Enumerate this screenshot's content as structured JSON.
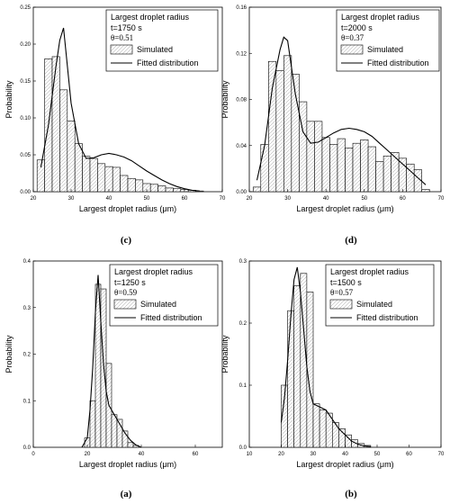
{
  "chart_data": [
    {
      "id": "c",
      "type": "bar",
      "caption": "(c)",
      "legend_title": "Largest droplet radius",
      "time_label": "t=1750 s",
      "theta_label": "θ=0.51",
      "legend_sim": "Simulated",
      "legend_fit": "Fitted distribution",
      "xlabel": "Largest droplet radius (μm)",
      "ylabel": "Probability",
      "xlim": [
        20,
        70
      ],
      "ylim": [
        0,
        0.25
      ],
      "xticks": [
        "20",
        "30",
        "40",
        "50",
        "60",
        "70"
      ],
      "yticks": [
        "0.00",
        "0.05",
        "0.10",
        "0.15",
        "0.20",
        "0.25"
      ],
      "bin_width": 2,
      "bin_starts": [
        21,
        23,
        25,
        27,
        29,
        31,
        33,
        35,
        37,
        39,
        41,
        43,
        45,
        47,
        49,
        51,
        53,
        55,
        57,
        59,
        61,
        63
      ],
      "values": [
        0.043,
        0.18,
        0.183,
        0.138,
        0.096,
        0.065,
        0.048,
        0.045,
        0.038,
        0.034,
        0.033,
        0.022,
        0.018,
        0.016,
        0.011,
        0.01,
        0.008,
        0.005,
        0.004,
        0.003,
        0.002,
        0.001
      ],
      "fit_x": [
        22,
        24,
        26,
        27,
        28,
        30,
        32,
        34,
        36,
        38,
        40,
        42,
        44,
        46,
        48,
        50,
        52,
        54,
        56,
        58,
        60,
        62,
        64
      ],
      "fit_y": [
        0.033,
        0.09,
        0.17,
        0.205,
        0.222,
        0.12,
        0.065,
        0.045,
        0.046,
        0.05,
        0.052,
        0.05,
        0.047,
        0.042,
        0.035,
        0.028,
        0.022,
        0.016,
        0.011,
        0.007,
        0.004,
        0.002,
        0.001
      ]
    },
    {
      "id": "d",
      "type": "bar",
      "caption": "(d)",
      "legend_title": "Largest droplet radius",
      "time_label": "t=2000 s",
      "theta_label": "θ=0.37",
      "legend_sim": "Simulated",
      "legend_fit": "Fitted distribution",
      "xlabel": "Largest droplet radius (μm)",
      "ylabel": "Probability",
      "xlim": [
        20,
        70
      ],
      "ylim": [
        0,
        0.16
      ],
      "xticks": [
        "20",
        "30",
        "40",
        "50",
        "60",
        "70"
      ],
      "yticks": [
        "0.00",
        "0.04",
        "0.08",
        "0.12",
        "0.16"
      ],
      "bin_width": 2,
      "bin_starts": [
        21,
        23,
        25,
        27,
        29,
        31,
        33,
        35,
        37,
        39,
        41,
        43,
        45,
        47,
        49,
        51,
        53,
        55,
        57,
        59,
        61,
        63,
        65
      ],
      "values": [
        0.004,
        0.041,
        0.113,
        0.105,
        0.118,
        0.102,
        0.078,
        0.061,
        0.061,
        0.047,
        0.041,
        0.046,
        0.038,
        0.042,
        0.045,
        0.039,
        0.026,
        0.031,
        0.034,
        0.029,
        0.024,
        0.019,
        0.002
      ],
      "fit_x": [
        22,
        24,
        26,
        28,
        29,
        30,
        32,
        34,
        36,
        38,
        40,
        42,
        44,
        46,
        48,
        50,
        52,
        54,
        56,
        58,
        60,
        62,
        64,
        66
      ],
      "fit_y": [
        0.01,
        0.04,
        0.09,
        0.123,
        0.134,
        0.131,
        0.085,
        0.052,
        0.042,
        0.043,
        0.047,
        0.051,
        0.054,
        0.055,
        0.054,
        0.052,
        0.048,
        0.042,
        0.036,
        0.03,
        0.024,
        0.018,
        0.012,
        0.006
      ]
    },
    {
      "id": "a",
      "type": "bar",
      "caption": "(a)",
      "legend_title": "Largest droplet radius",
      "time_label": "t=1250 s",
      "theta_label": "θ=0.59",
      "legend_sim": "Simulated",
      "legend_fit": "Fitted distribution",
      "xlabel": "Largest droplet radius (μm)",
      "ylabel": "Probability",
      "xlim": [
        0,
        70
      ],
      "ylim": [
        0,
        0.4
      ],
      "xticks": [
        "0",
        "20",
        "40",
        "60"
      ],
      "yticks": [
        "0.0",
        "0.1",
        "0.2",
        "0.3",
        "0.4"
      ],
      "bin_width": 2,
      "bin_starts": [
        19,
        21,
        23,
        25,
        27,
        29,
        31,
        33,
        35,
        37
      ],
      "values": [
        0.02,
        0.1,
        0.35,
        0.34,
        0.18,
        0.07,
        0.06,
        0.035,
        0.01,
        0.004
      ],
      "fit_x": [
        18,
        20,
        21,
        22,
        23,
        24,
        25,
        26,
        27,
        28,
        29,
        30,
        32,
        34,
        36,
        38,
        40
      ],
      "fit_y": [
        0.0,
        0.02,
        0.08,
        0.17,
        0.29,
        0.37,
        0.27,
        0.18,
        0.12,
        0.09,
        0.08,
        0.07,
        0.05,
        0.03,
        0.015,
        0.005,
        0.0
      ]
    },
    {
      "id": "b",
      "type": "bar",
      "caption": "(b)",
      "legend_title": "Largest droplet radius",
      "time_label": "t=1500 s",
      "theta_label": "θ=0.57",
      "legend_sim": "Simulated",
      "legend_fit": "Fitted distribution",
      "xlabel": "Largest droplet radius (μm)",
      "ylabel": "Probability",
      "xlim": [
        10,
        70
      ],
      "ylim": [
        0,
        0.3
      ],
      "xticks": [
        "10",
        "20",
        "30",
        "40",
        "50",
        "60",
        "70"
      ],
      "yticks": [
        "0.0",
        "0.1",
        "0.2",
        "0.3"
      ],
      "bin_width": 2,
      "bin_starts": [
        20,
        22,
        24,
        26,
        28,
        30,
        32,
        34,
        36,
        38,
        40,
        42,
        44,
        46
      ],
      "values": [
        0.1,
        0.22,
        0.26,
        0.28,
        0.25,
        0.07,
        0.06,
        0.055,
        0.04,
        0.03,
        0.02,
        0.012,
        0.006,
        0.003
      ],
      "fit_x": [
        20,
        21,
        22,
        23,
        24,
        25,
        26,
        27,
        28,
        29,
        30,
        32,
        34,
        36,
        38,
        40,
        42,
        44,
        46,
        48
      ],
      "fit_y": [
        0.04,
        0.08,
        0.14,
        0.21,
        0.27,
        0.29,
        0.25,
        0.19,
        0.13,
        0.09,
        0.07,
        0.065,
        0.06,
        0.045,
        0.03,
        0.02,
        0.01,
        0.005,
        0.002,
        0.001
      ]
    }
  ]
}
